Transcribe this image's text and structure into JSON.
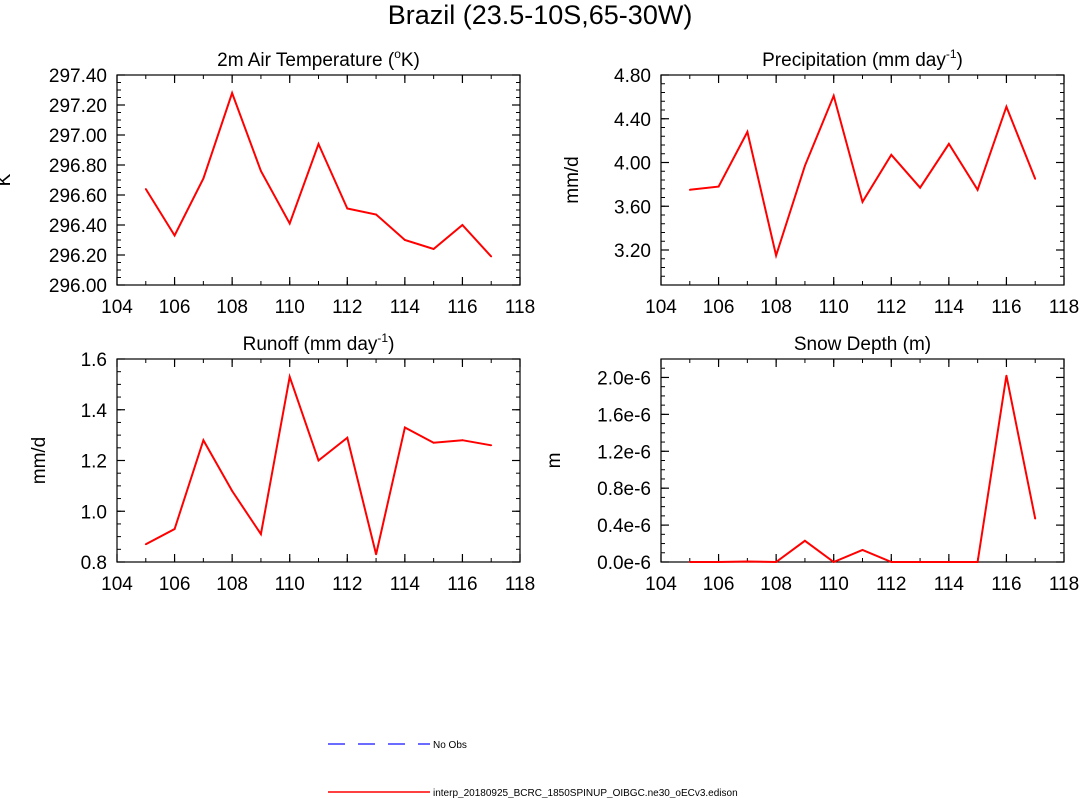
{
  "figure": {
    "title": "Brazil (23.5-10S,65-30W)"
  },
  "colors": {
    "model_line": "#ff0000",
    "obs_line": "#3a3aff",
    "axis": "#000000",
    "background": "#ffffff"
  },
  "legend": {
    "placement": "bottom-center",
    "items": [
      {
        "label": "No Obs",
        "style": "dashed",
        "color": "#3a3aff"
      },
      {
        "label": "interp_20180925_BCRC_1850SPINUP_OIBGC.ne30_oECv3.edison",
        "style": "solid",
        "color": "#ff0000"
      }
    ]
  },
  "chart_data": [
    {
      "type": "line",
      "title_text": "2m Air Temperature (",
      "title_sup": "o",
      "title_after": "K)",
      "ylabel": "K",
      "xlabel": "",
      "xlim": [
        104,
        118
      ],
      "x_ticks": [
        104,
        106,
        108,
        110,
        112,
        114,
        116,
        118
      ],
      "x_tick_labels": [
        "104",
        "106",
        "108",
        "110",
        "112",
        "114",
        "116",
        "118"
      ],
      "ylim": [
        296.0,
        297.4
      ],
      "y_ticks": [
        296.0,
        296.2,
        296.4,
        296.6,
        296.8,
        297.0,
        297.2,
        297.4
      ],
      "y_tick_labels": [
        "296.00",
        "296.20",
        "296.40",
        "296.60",
        "296.80",
        "297.00",
        "297.20",
        "297.40"
      ],
      "y_minor_step": 0.05,
      "x": [
        105,
        106,
        107,
        108,
        109,
        110,
        111,
        112,
        113,
        114,
        115,
        116,
        117
      ],
      "series": [
        {
          "name": "interp_20180925_BCRC_1850SPINUP_OIBGC.ne30_oECv3.edison",
          "values": [
            296.64,
            296.33,
            296.71,
            297.28,
            296.76,
            296.41,
            296.94,
            296.51,
            296.47,
            296.3,
            296.24,
            296.4,
            296.19
          ]
        }
      ]
    },
    {
      "type": "line",
      "title_text": "Precipitation (mm day",
      "title_sup": "-1",
      "title_after": ")",
      "ylabel": "mm/d",
      "xlabel": "",
      "xlim": [
        104,
        118
      ],
      "x_ticks": [
        104,
        106,
        108,
        110,
        112,
        114,
        116,
        118
      ],
      "x_tick_labels": [
        "104",
        "106",
        "108",
        "110",
        "112",
        "114",
        "116",
        "118"
      ],
      "ylim": [
        2.88,
        4.8
      ],
      "y_ticks": [
        3.2,
        3.6,
        4.0,
        4.4,
        4.8
      ],
      "y_tick_labels": [
        "3.20",
        "3.60",
        "4.00",
        "4.40",
        "4.80"
      ],
      "y_minor_step": 0.08,
      "x": [
        105,
        106,
        107,
        108,
        109,
        110,
        111,
        112,
        113,
        114,
        115,
        116,
        117
      ],
      "series": [
        {
          "name": "interp_20180925_BCRC_1850SPINUP_OIBGC.ne30_oECv3.edison",
          "values": [
            3.75,
            3.78,
            4.28,
            3.15,
            3.97,
            4.61,
            3.64,
            4.07,
            3.77,
            4.17,
            3.75,
            4.51,
            3.85
          ]
        }
      ]
    },
    {
      "type": "line",
      "title_text": "Runoff (mm day",
      "title_sup": "-1",
      "title_after": ")",
      "ylabel": "mm/d",
      "xlabel": "",
      "xlim": [
        104,
        118
      ],
      "x_ticks": [
        104,
        106,
        108,
        110,
        112,
        114,
        116,
        118
      ],
      "x_tick_labels": [
        "104",
        "106",
        "108",
        "110",
        "112",
        "114",
        "116",
        "118"
      ],
      "ylim": [
        0.8,
        1.6
      ],
      "y_ticks": [
        0.8,
        1.0,
        1.2,
        1.4,
        1.6
      ],
      "y_tick_labels": [
        "0.8",
        "1.0",
        "1.2",
        "1.4",
        "1.6"
      ],
      "y_minor_step": 0.05,
      "x": [
        105,
        106,
        107,
        108,
        109,
        110,
        111,
        112,
        113,
        114,
        115,
        116,
        117
      ],
      "series": [
        {
          "name": "interp_20180925_BCRC_1850SPINUP_OIBGC.ne30_oECv3.edison",
          "values": [
            0.87,
            0.93,
            1.28,
            1.08,
            0.91,
            1.53,
            1.2,
            1.29,
            0.83,
            1.33,
            1.27,
            1.28,
            1.26
          ]
        }
      ]
    },
    {
      "type": "line",
      "title_text": "Snow Depth (m)",
      "title_sup": "",
      "title_after": "",
      "ylabel": "m",
      "xlabel": "",
      "xlim": [
        104,
        118
      ],
      "x_ticks": [
        104,
        106,
        108,
        110,
        112,
        114,
        116,
        118
      ],
      "x_tick_labels": [
        "104",
        "106",
        "108",
        "110",
        "112",
        "114",
        "116",
        "118"
      ],
      "ylim": [
        0.0,
        2.2e-06
      ],
      "y_ticks": [
        0.0,
        4e-07,
        8e-07,
        1.2e-06,
        1.6e-06,
        2e-06
      ],
      "y_tick_labels": [
        "0.0e-6",
        "0.4e-6",
        "0.8e-6",
        "1.2e-6",
        "1.6e-6",
        "2.0e-6"
      ],
      "y_minor_step": 1e-07,
      "x": [
        105,
        106,
        107,
        108,
        109,
        110,
        111,
        112,
        113,
        114,
        115,
        116,
        117
      ],
      "series": [
        {
          "name": "interp_20180925_BCRC_1850SPINUP_OIBGC.ne30_oECv3.edison",
          "values": [
            0.0,
            0.0,
            5e-09,
            0.0,
            2.3e-07,
            0.0,
            1.3e-07,
            0.0,
            0.0,
            0.0,
            0.0,
            2.02e-06,
            4.7e-07
          ]
        }
      ]
    }
  ]
}
